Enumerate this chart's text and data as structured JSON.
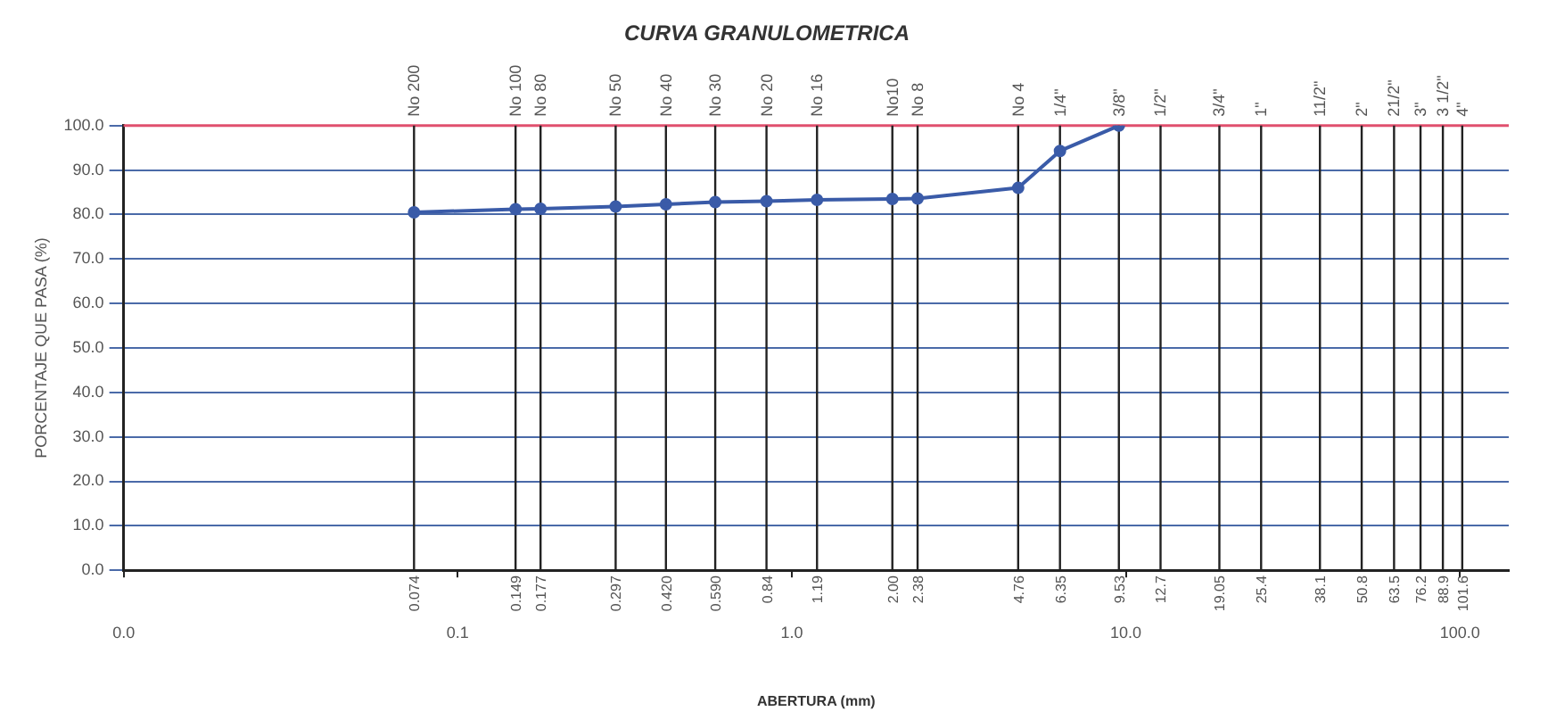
{
  "chart_data": {
    "type": "line",
    "title": "CURVA GRANULOMETRICA",
    "xlabel": "ABERTURA (mm)",
    "ylabel": "PORCENTAJE QUE PASA (%)",
    "log": "x",
    "grid": "y",
    "marker": "circle",
    "line_style": "solid",
    "xlim": [
      0.01,
      140
    ],
    "xticks": [
      {
        "value": 0.01,
        "label": "0.0"
      },
      {
        "value": 0.1,
        "label": "0.1"
      },
      {
        "value": 1,
        "label": "1.0"
      },
      {
        "value": 10,
        "label": "10.0"
      },
      {
        "value": 100,
        "label": "100.0"
      }
    ],
    "ylim": [
      0,
      100
    ],
    "yticks": [
      {
        "value": 0,
        "label": "0.0"
      },
      {
        "value": 10,
        "label": "10.0"
      },
      {
        "value": 20,
        "label": "20.0"
      },
      {
        "value": 30,
        "label": "30.0"
      },
      {
        "value": 40,
        "label": "40.0"
      },
      {
        "value": 50,
        "label": "50.0"
      },
      {
        "value": 60,
        "label": "60.0"
      },
      {
        "value": 70,
        "label": "70.0"
      },
      {
        "value": 80,
        "label": "80.0"
      },
      {
        "value": 90,
        "label": "90.0"
      },
      {
        "value": 100,
        "label": "100.0"
      }
    ],
    "ref_lines": [
      {
        "axis": "y",
        "value": 100,
        "color": "#e0506e"
      },
      {
        "axis": "x",
        "value": 0.074
      },
      {
        "axis": "x",
        "value": 0.149
      },
      {
        "axis": "x",
        "value": 0.177
      },
      {
        "axis": "x",
        "value": 0.297
      },
      {
        "axis": "x",
        "value": 0.42
      },
      {
        "axis": "x",
        "value": 0.59
      },
      {
        "axis": "x",
        "value": 0.84
      },
      {
        "axis": "x",
        "value": 1.19
      },
      {
        "axis": "x",
        "value": 2.0
      },
      {
        "axis": "x",
        "value": 2.38
      },
      {
        "axis": "x",
        "value": 4.76
      },
      {
        "axis": "x",
        "value": 6.35
      },
      {
        "axis": "x",
        "value": 9.53
      },
      {
        "axis": "x",
        "value": 12.7
      },
      {
        "axis": "x",
        "value": 19.05
      },
      {
        "axis": "x",
        "value": 25.4
      },
      {
        "axis": "x",
        "value": 38.1
      },
      {
        "axis": "x",
        "value": 50.8
      },
      {
        "axis": "x",
        "value": 63.5
      },
      {
        "axis": "x",
        "value": 76.2
      },
      {
        "axis": "x",
        "value": 88.9
      },
      {
        "axis": "x",
        "value": 101.6
      }
    ],
    "annotations": [
      {
        "text": "No 200",
        "x": 0.074,
        "y": 100
      },
      {
        "text": "No 100",
        "x": 0.149,
        "y": 100
      },
      {
        "text": "No 80",
        "x": 0.177,
        "y": 100
      },
      {
        "text": "No 50",
        "x": 0.297,
        "y": 100
      },
      {
        "text": "No 40",
        "x": 0.42,
        "y": 100
      },
      {
        "text": "No 30",
        "x": 0.59,
        "y": 100
      },
      {
        "text": "No 20",
        "x": 0.84,
        "y": 100
      },
      {
        "text": "No 16",
        "x": 1.19,
        "y": 100
      },
      {
        "text": "No10",
        "x": 2.0,
        "y": 100
      },
      {
        "text": "No 8",
        "x": 2.38,
        "y": 100
      },
      {
        "text": "No 4",
        "x": 4.76,
        "y": 100
      },
      {
        "text": "1/4\"",
        "x": 6.35,
        "y": 100
      },
      {
        "text": "3/8\"",
        "x": 9.53,
        "y": 100
      },
      {
        "text": "1/2\"",
        "x": 12.7,
        "y": 100
      },
      {
        "text": "3/4\"",
        "x": 19.05,
        "y": 100
      },
      {
        "text": "1\"",
        "x": 25.4,
        "y": 100
      },
      {
        "text": "11/2\"",
        "x": 38.1,
        "y": 100
      },
      {
        "text": "2\"",
        "x": 50.8,
        "y": 100
      },
      {
        "text": "21/2\"",
        "x": 63.5,
        "y": 100
      },
      {
        "text": "3\"",
        "x": 76.2,
        "y": 100
      },
      {
        "text": "3 1/2\"",
        "x": 88.9,
        "y": 100
      },
      {
        "text": "4\"",
        "x": 101.6,
        "y": 100
      },
      {
        "text": "0.074",
        "x": 0.074,
        "y": 0
      },
      {
        "text": "0.149",
        "x": 0.149,
        "y": 0
      },
      {
        "text": "0.177",
        "x": 0.177,
        "y": 0
      },
      {
        "text": "0.297",
        "x": 0.297,
        "y": 0
      },
      {
        "text": "0.420",
        "x": 0.42,
        "y": 0
      },
      {
        "text": "0.590",
        "x": 0.59,
        "y": 0
      },
      {
        "text": "0.84",
        "x": 0.84,
        "y": 0
      },
      {
        "text": "1.19",
        "x": 1.19,
        "y": 0
      },
      {
        "text": "2.00",
        "x": 2.0,
        "y": 0
      },
      {
        "text": "2.38",
        "x": 2.38,
        "y": 0
      },
      {
        "text": "4.76",
        "x": 4.76,
        "y": 0
      },
      {
        "text": "6.35",
        "x": 6.35,
        "y": 0
      },
      {
        "text": "9.53",
        "x": 9.53,
        "y": 0
      },
      {
        "text": "12.7",
        "x": 12.7,
        "y": 0
      },
      {
        "text": "19.05",
        "x": 19.05,
        "y": 0
      },
      {
        "text": "25.4",
        "x": 25.4,
        "y": 0
      },
      {
        "text": "38.1",
        "x": 38.1,
        "y": 0
      },
      {
        "text": "50.8",
        "x": 50.8,
        "y": 0
      },
      {
        "text": "63.5",
        "x": 63.5,
        "y": 0
      },
      {
        "text": "76.2",
        "x": 76.2,
        "y": 0
      },
      {
        "text": "88.9",
        "x": 88.9,
        "y": 0
      },
      {
        "text": "101.6",
        "x": 101.6,
        "y": 0
      }
    ],
    "series": [
      {
        "color": "#3a5ba8",
        "x": [
          0.074,
          0.149,
          0.177,
          0.297,
          0.42,
          0.59,
          0.84,
          1.19,
          2.0,
          2.38,
          4.76,
          6.35,
          9.53
        ],
        "values": [
          80.5,
          81.2,
          81.3,
          81.8,
          82.3,
          82.8,
          83.0,
          83.3,
          83.5,
          83.6,
          86.0,
          94.3,
          100.0
        ]
      }
    ]
  }
}
